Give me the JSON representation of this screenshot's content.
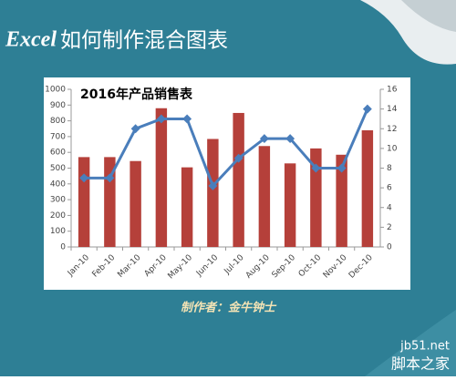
{
  "page": {
    "title_prefix": "Excel",
    "title": "如何制作混合图表",
    "author": "制作者：金牛钟士",
    "watermark_site": "jb51.net",
    "watermark_name": "脚本之家"
  },
  "chart_data": {
    "type": "bar",
    "title": "2016年产品销售表",
    "categories": [
      "Jan-10",
      "Feb-10",
      "Mar-10",
      "Apr-10",
      "May-10",
      "Jun-10",
      "Jul-10",
      "Aug-10",
      "Sep-10",
      "Oct-10",
      "Nov-10",
      "Dec-10"
    ],
    "series": [
      {
        "type": "bar",
        "color": "#b5403a",
        "values": [
          570,
          570,
          545,
          880,
          505,
          685,
          850,
          640,
          530,
          625,
          585,
          740
        ]
      },
      {
        "type": "line",
        "axis": "y2",
        "color": "#4a7ebb",
        "values": [
          7,
          7,
          12,
          13,
          13,
          6.2,
          9,
          11,
          11,
          8,
          8,
          14
        ]
      }
    ],
    "ylim": [
      0,
      1000
    ],
    "yticks": [
      0,
      100,
      200,
      300,
      400,
      500,
      600,
      700,
      800,
      900,
      1000
    ],
    "y2lim": [
      0,
      16
    ],
    "y2ticks": [
      0,
      2,
      4,
      6,
      8,
      10,
      12,
      14,
      16
    ],
    "grid": false
  }
}
